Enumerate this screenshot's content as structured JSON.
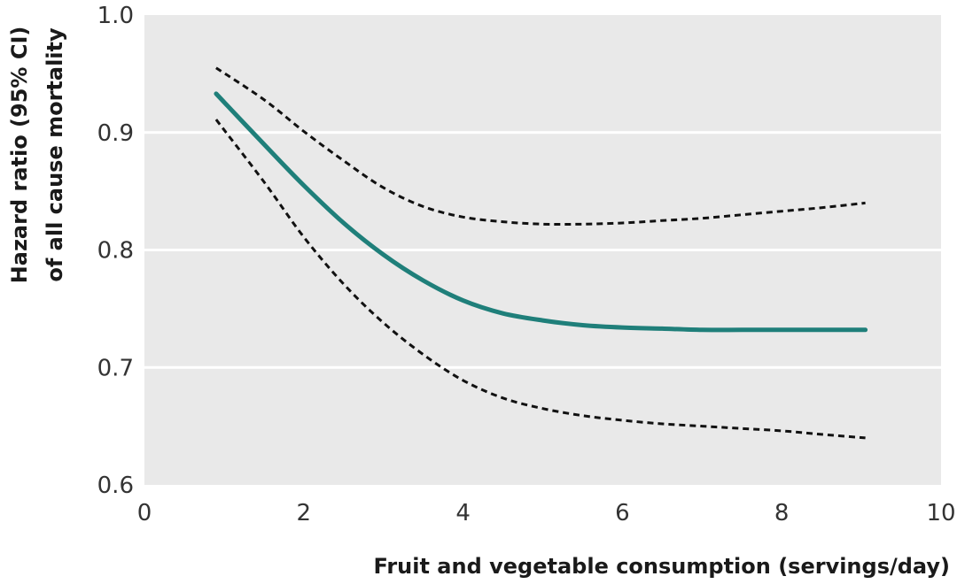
{
  "chart_data": {
    "type": "line",
    "title": "",
    "xlabel": "Fruit and vegetable consumption (servings/day)",
    "ylabel": [
      "Hazard ratio (95% CI)",
      "of all cause mortality"
    ],
    "xlim": [
      0,
      10
    ],
    "ylim": [
      0.6,
      1.0
    ],
    "xticks": [
      0,
      2,
      4,
      6,
      8,
      10
    ],
    "yticks": [
      0.6,
      0.7,
      0.8,
      0.9,
      1.0
    ],
    "xtick_labels": [
      "0",
      "2",
      "4",
      "6",
      "8",
      "10"
    ],
    "ytick_labels": [
      "0.6",
      "0.7",
      "0.8",
      "0.9",
      "1.0"
    ],
    "grid": "horizontal",
    "background": "#e9e9e9",
    "series": [
      {
        "name": "Hazard ratio",
        "style": "solid",
        "color": "#1f7f7a",
        "x": [
          0.9,
          1.5,
          2.0,
          2.5,
          3.0,
          3.5,
          4.0,
          4.5,
          5.0,
          5.5,
          6.0,
          6.5,
          7.0,
          7.5,
          8.0,
          8.5,
          9.05
        ],
        "y": [
          0.933,
          0.89,
          0.855,
          0.823,
          0.796,
          0.774,
          0.757,
          0.746,
          0.74,
          0.736,
          0.734,
          0.733,
          0.732,
          0.732,
          0.732,
          0.732,
          0.732
        ]
      },
      {
        "name": "Upper 95% CI",
        "style": "dashed",
        "color": "#111111",
        "x": [
          0.9,
          1.5,
          2.0,
          2.5,
          3.0,
          3.5,
          4.0,
          4.5,
          5.0,
          5.5,
          6.0,
          6.5,
          7.0,
          7.5,
          8.0,
          8.5,
          9.05
        ],
        "y": [
          0.955,
          0.928,
          0.901,
          0.876,
          0.853,
          0.837,
          0.828,
          0.824,
          0.822,
          0.822,
          0.823,
          0.825,
          0.827,
          0.83,
          0.833,
          0.836,
          0.84
        ]
      },
      {
        "name": "Lower 95% CI",
        "style": "dashed",
        "color": "#111111",
        "x": [
          0.9,
          1.5,
          2.0,
          2.5,
          3.0,
          3.5,
          4.0,
          4.5,
          5.0,
          5.5,
          6.0,
          6.5,
          7.0,
          7.5,
          8.0,
          8.5,
          9.05
        ],
        "y": [
          0.911,
          0.858,
          0.811,
          0.771,
          0.738,
          0.711,
          0.689,
          0.674,
          0.665,
          0.659,
          0.655,
          0.652,
          0.65,
          0.648,
          0.646,
          0.643,
          0.64
        ]
      }
    ]
  }
}
